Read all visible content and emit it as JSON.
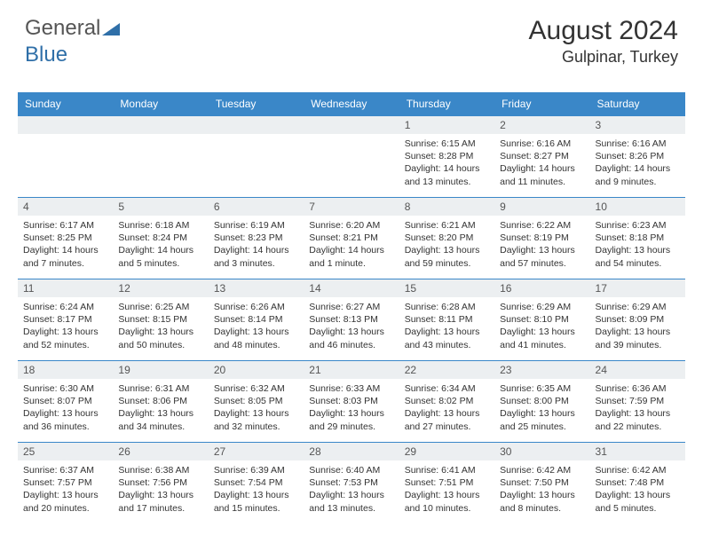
{
  "logo": {
    "text1": "General",
    "text2": "Blue"
  },
  "header": {
    "title": "August 2024",
    "subtitle": "Gulpinar, Turkey"
  },
  "theme": {
    "header_bg": "#3a87c8",
    "header_fg": "#ffffff",
    "daynum_bg": "#eceff1",
    "daynum_fg": "#555555",
    "border": "#3a87c8",
    "text": "#333333",
    "page_bg": "#ffffff",
    "logo_blue": "#2f6fa8"
  },
  "calendar": {
    "columns": [
      "Sunday",
      "Monday",
      "Tuesday",
      "Wednesday",
      "Thursday",
      "Friday",
      "Saturday"
    ],
    "weeks": [
      [
        null,
        null,
        null,
        null,
        {
          "n": "1",
          "sr": "6:15 AM",
          "ss": "8:28 PM",
          "dl": "14 hours and 13 minutes."
        },
        {
          "n": "2",
          "sr": "6:16 AM",
          "ss": "8:27 PM",
          "dl": "14 hours and 11 minutes."
        },
        {
          "n": "3",
          "sr": "6:16 AM",
          "ss": "8:26 PM",
          "dl": "14 hours and 9 minutes."
        }
      ],
      [
        {
          "n": "4",
          "sr": "6:17 AM",
          "ss": "8:25 PM",
          "dl": "14 hours and 7 minutes."
        },
        {
          "n": "5",
          "sr": "6:18 AM",
          "ss": "8:24 PM",
          "dl": "14 hours and 5 minutes."
        },
        {
          "n": "6",
          "sr": "6:19 AM",
          "ss": "8:23 PM",
          "dl": "14 hours and 3 minutes."
        },
        {
          "n": "7",
          "sr": "6:20 AM",
          "ss": "8:21 PM",
          "dl": "14 hours and 1 minute."
        },
        {
          "n": "8",
          "sr": "6:21 AM",
          "ss": "8:20 PM",
          "dl": "13 hours and 59 minutes."
        },
        {
          "n": "9",
          "sr": "6:22 AM",
          "ss": "8:19 PM",
          "dl": "13 hours and 57 minutes."
        },
        {
          "n": "10",
          "sr": "6:23 AM",
          "ss": "8:18 PM",
          "dl": "13 hours and 54 minutes."
        }
      ],
      [
        {
          "n": "11",
          "sr": "6:24 AM",
          "ss": "8:17 PM",
          "dl": "13 hours and 52 minutes."
        },
        {
          "n": "12",
          "sr": "6:25 AM",
          "ss": "8:15 PM",
          "dl": "13 hours and 50 minutes."
        },
        {
          "n": "13",
          "sr": "6:26 AM",
          "ss": "8:14 PM",
          "dl": "13 hours and 48 minutes."
        },
        {
          "n": "14",
          "sr": "6:27 AM",
          "ss": "8:13 PM",
          "dl": "13 hours and 46 minutes."
        },
        {
          "n": "15",
          "sr": "6:28 AM",
          "ss": "8:11 PM",
          "dl": "13 hours and 43 minutes."
        },
        {
          "n": "16",
          "sr": "6:29 AM",
          "ss": "8:10 PM",
          "dl": "13 hours and 41 minutes."
        },
        {
          "n": "17",
          "sr": "6:29 AM",
          "ss": "8:09 PM",
          "dl": "13 hours and 39 minutes."
        }
      ],
      [
        {
          "n": "18",
          "sr": "6:30 AM",
          "ss": "8:07 PM",
          "dl": "13 hours and 36 minutes."
        },
        {
          "n": "19",
          "sr": "6:31 AM",
          "ss": "8:06 PM",
          "dl": "13 hours and 34 minutes."
        },
        {
          "n": "20",
          "sr": "6:32 AM",
          "ss": "8:05 PM",
          "dl": "13 hours and 32 minutes."
        },
        {
          "n": "21",
          "sr": "6:33 AM",
          "ss": "8:03 PM",
          "dl": "13 hours and 29 minutes."
        },
        {
          "n": "22",
          "sr": "6:34 AM",
          "ss": "8:02 PM",
          "dl": "13 hours and 27 minutes."
        },
        {
          "n": "23",
          "sr": "6:35 AM",
          "ss": "8:00 PM",
          "dl": "13 hours and 25 minutes."
        },
        {
          "n": "24",
          "sr": "6:36 AM",
          "ss": "7:59 PM",
          "dl": "13 hours and 22 minutes."
        }
      ],
      [
        {
          "n": "25",
          "sr": "6:37 AM",
          "ss": "7:57 PM",
          "dl": "13 hours and 20 minutes."
        },
        {
          "n": "26",
          "sr": "6:38 AM",
          "ss": "7:56 PM",
          "dl": "13 hours and 17 minutes."
        },
        {
          "n": "27",
          "sr": "6:39 AM",
          "ss": "7:54 PM",
          "dl": "13 hours and 15 minutes."
        },
        {
          "n": "28",
          "sr": "6:40 AM",
          "ss": "7:53 PM",
          "dl": "13 hours and 13 minutes."
        },
        {
          "n": "29",
          "sr": "6:41 AM",
          "ss": "7:51 PM",
          "dl": "13 hours and 10 minutes."
        },
        {
          "n": "30",
          "sr": "6:42 AM",
          "ss": "7:50 PM",
          "dl": "13 hours and 8 minutes."
        },
        {
          "n": "31",
          "sr": "6:42 AM",
          "ss": "7:48 PM",
          "dl": "13 hours and 5 minutes."
        }
      ]
    ],
    "labels": {
      "sunrise": "Sunrise:",
      "sunset": "Sunset:",
      "daylight": "Daylight:"
    }
  }
}
